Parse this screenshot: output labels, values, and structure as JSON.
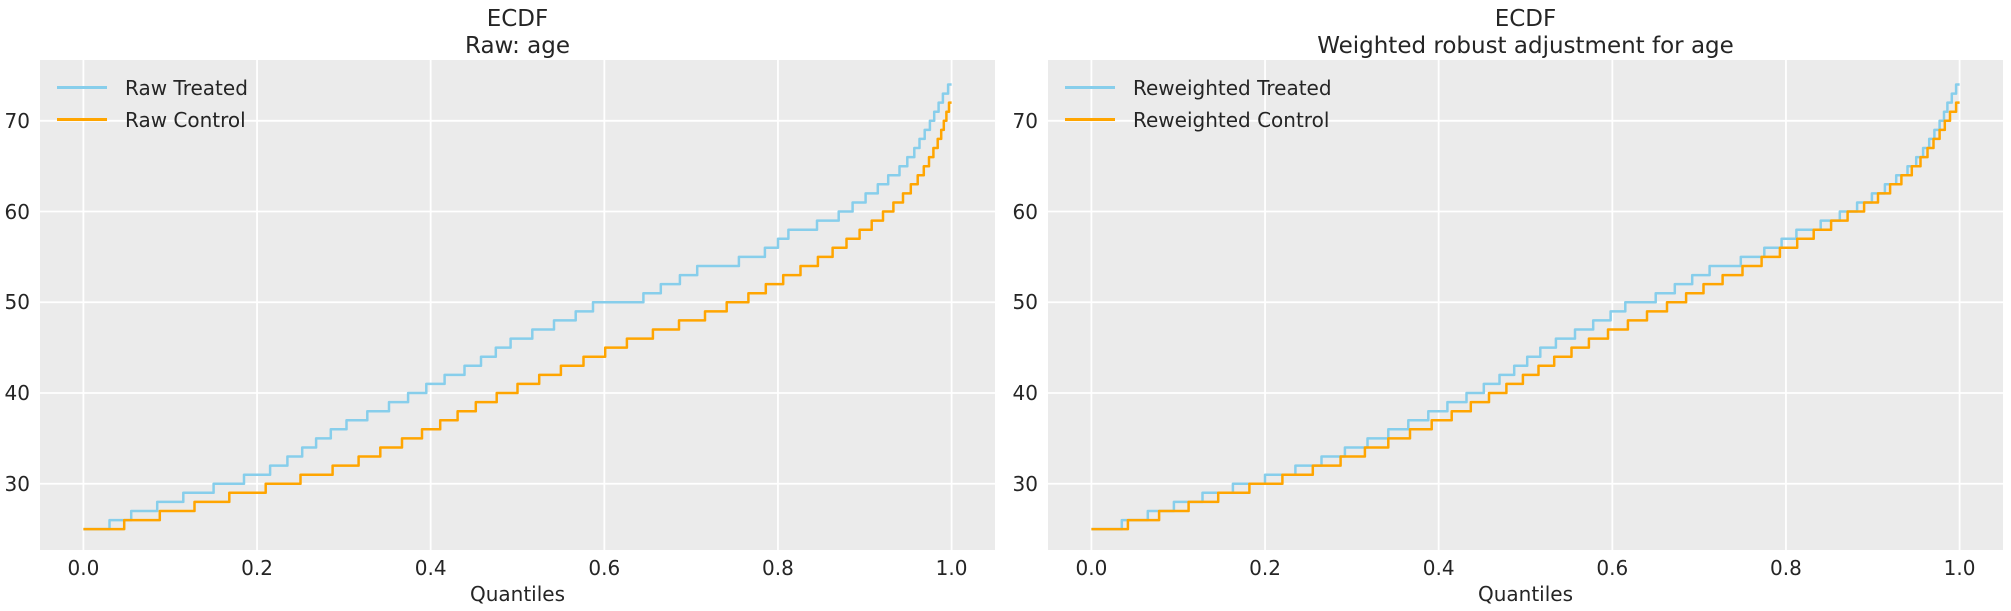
{
  "style": {
    "background": "#ffffff",
    "panel_bg": "#ebebeb",
    "grid_color": "#ffffff",
    "text_color": "#252525",
    "treated_color": "#87ceeb",
    "control_color": "#ffa500"
  },
  "chart_data": [
    {
      "type": "line",
      "step": true,
      "title_lines": [
        "ECDF",
        "Raw: age"
      ],
      "xlabel": "Quantiles",
      "ylabel": "",
      "xlim": [
        -0.05,
        1.05
      ],
      "ylim": [
        22.7,
        76.7
      ],
      "x_tick_values": [
        0.0,
        0.2,
        0.4,
        0.6,
        0.8,
        1.0
      ],
      "x_tick_labels": [
        "0.0",
        "0.2",
        "0.4",
        "0.6",
        "0.8",
        "1.0"
      ],
      "y_tick_values": [
        30,
        40,
        50,
        60,
        70
      ],
      "y_tick_labels": [
        "30",
        "40",
        "50",
        "60",
        "70"
      ],
      "grid": true,
      "legend_position": "upper left",
      "series": [
        {
          "name": "Raw Treated",
          "color_key": "treated_color",
          "points": [
            [
              0,
              25
            ],
            [
              0.03,
              26
            ],
            [
              0.055,
              27
            ],
            [
              0.085,
              28
            ],
            [
              0.115,
              29
            ],
            [
              0.15,
              30
            ],
            [
              0.185,
              31
            ],
            [
              0.215,
              32
            ],
            [
              0.235,
              33
            ],
            [
              0.252,
              34
            ],
            [
              0.268,
              35
            ],
            [
              0.285,
              36
            ],
            [
              0.303,
              37
            ],
            [
              0.327,
              38
            ],
            [
              0.352,
              39
            ],
            [
              0.374,
              40
            ],
            [
              0.395,
              41
            ],
            [
              0.416,
              42
            ],
            [
              0.439,
              43
            ],
            [
              0.458,
              44
            ],
            [
              0.475,
              45
            ],
            [
              0.492,
              46
            ],
            [
              0.517,
              47
            ],
            [
              0.542,
              48
            ],
            [
              0.567,
              49
            ],
            [
              0.587,
              50
            ],
            [
              0.645,
              51
            ],
            [
              0.665,
              52
            ],
            [
              0.687,
              53
            ],
            [
              0.707,
              54
            ],
            [
              0.755,
              55
            ],
            [
              0.785,
              56
            ],
            [
              0.8,
              57
            ],
            [
              0.812,
              58
            ],
            [
              0.845,
              59
            ],
            [
              0.87,
              60
            ],
            [
              0.886,
              61
            ],
            [
              0.901,
              62
            ],
            [
              0.915,
              63
            ],
            [
              0.927,
              64
            ],
            [
              0.94,
              65
            ],
            [
              0.949,
              66
            ],
            [
              0.957,
              67
            ],
            [
              0.963,
              68
            ],
            [
              0.969,
              69
            ],
            [
              0.975,
              70
            ],
            [
              0.98,
              71
            ],
            [
              0.985,
              72
            ],
            [
              0.99,
              73
            ],
            [
              0.996,
              74
            ]
          ]
        },
        {
          "name": "Raw Control",
          "color_key": "control_color",
          "points": [
            [
              0,
              25
            ],
            [
              0.047,
              26
            ],
            [
              0.088,
              27
            ],
            [
              0.128,
              28
            ],
            [
              0.168,
              29
            ],
            [
              0.21,
              30
            ],
            [
              0.25,
              31
            ],
            [
              0.287,
              32
            ],
            [
              0.317,
              33
            ],
            [
              0.342,
              34
            ],
            [
              0.367,
              35
            ],
            [
              0.39,
              36
            ],
            [
              0.411,
              37
            ],
            [
              0.431,
              38
            ],
            [
              0.452,
              39
            ],
            [
              0.476,
              40
            ],
            [
              0.5,
              41
            ],
            [
              0.525,
              42
            ],
            [
              0.55,
              43
            ],
            [
              0.576,
              44
            ],
            [
              0.601,
              45
            ],
            [
              0.626,
              46
            ],
            [
              0.656,
              47
            ],
            [
              0.686,
              48
            ],
            [
              0.716,
              49
            ],
            [
              0.741,
              50
            ],
            [
              0.766,
              51
            ],
            [
              0.786,
              52
            ],
            [
              0.806,
              53
            ],
            [
              0.826,
              54
            ],
            [
              0.846,
              55
            ],
            [
              0.863,
              56
            ],
            [
              0.879,
              57
            ],
            [
              0.894,
              58
            ],
            [
              0.908,
              59
            ],
            [
              0.921,
              60
            ],
            [
              0.933,
              61
            ],
            [
              0.944,
              62
            ],
            [
              0.953,
              63
            ],
            [
              0.961,
              64
            ],
            [
              0.968,
              65
            ],
            [
              0.974,
              66
            ],
            [
              0.979,
              67
            ],
            [
              0.984,
              68
            ],
            [
              0.988,
              69
            ],
            [
              0.991,
              70
            ],
            [
              0.994,
              71
            ],
            [
              0.997,
              72
            ]
          ]
        }
      ]
    },
    {
      "type": "line",
      "step": true,
      "title_lines": [
        "ECDF",
        "Weighted robust adjustment for age"
      ],
      "xlabel": "Quantiles",
      "ylabel": "",
      "xlim": [
        -0.05,
        1.05
      ],
      "ylim": [
        22.7,
        76.7
      ],
      "x_tick_values": [
        0.0,
        0.2,
        0.4,
        0.6,
        0.8,
        1.0
      ],
      "x_tick_labels": [
        "0.0",
        "0.2",
        "0.4",
        "0.6",
        "0.8",
        "1.0"
      ],
      "y_tick_values": [
        30,
        40,
        50,
        60,
        70
      ],
      "y_tick_labels": [
        "30",
        "40",
        "50",
        "60",
        "70"
      ],
      "grid": true,
      "legend_position": "upper left",
      "series": [
        {
          "name": "Reweighted Treated",
          "color_key": "treated_color",
          "points": [
            [
              0,
              25
            ],
            [
              0.035,
              26
            ],
            [
              0.065,
              27
            ],
            [
              0.095,
              28
            ],
            [
              0.128,
              29
            ],
            [
              0.163,
              30
            ],
            [
              0.2,
              31
            ],
            [
              0.235,
              32
            ],
            [
              0.265,
              33
            ],
            [
              0.292,
              34
            ],
            [
              0.318,
              35
            ],
            [
              0.342,
              36
            ],
            [
              0.365,
              37
            ],
            [
              0.388,
              38
            ],
            [
              0.41,
              39
            ],
            [
              0.432,
              40
            ],
            [
              0.452,
              41
            ],
            [
              0.47,
              42
            ],
            [
              0.487,
              43
            ],
            [
              0.502,
              44
            ],
            [
              0.517,
              45
            ],
            [
              0.535,
              46
            ],
            [
              0.557,
              47
            ],
            [
              0.578,
              48
            ],
            [
              0.598,
              49
            ],
            [
              0.615,
              50
            ],
            [
              0.65,
              51
            ],
            [
              0.672,
              52
            ],
            [
              0.692,
              53
            ],
            [
              0.712,
              54
            ],
            [
              0.748,
              55
            ],
            [
              0.775,
              56
            ],
            [
              0.795,
              57
            ],
            [
              0.812,
              58
            ],
            [
              0.84,
              59
            ],
            [
              0.862,
              60
            ],
            [
              0.882,
              61
            ],
            [
              0.899,
              62
            ],
            [
              0.914,
              63
            ],
            [
              0.927,
              64
            ],
            [
              0.94,
              65
            ],
            [
              0.95,
              66
            ],
            [
              0.958,
              67
            ],
            [
              0.965,
              68
            ],
            [
              0.971,
              69
            ],
            [
              0.977,
              70
            ],
            [
              0.982,
              71
            ],
            [
              0.986,
              72
            ],
            [
              0.991,
              73
            ],
            [
              0.996,
              74
            ]
          ]
        },
        {
          "name": "Reweighted Control",
          "color_key": "control_color",
          "points": [
            [
              0,
              25
            ],
            [
              0.042,
              26
            ],
            [
              0.078,
              27
            ],
            [
              0.112,
              28
            ],
            [
              0.146,
              29
            ],
            [
              0.182,
              30
            ],
            [
              0.22,
              31
            ],
            [
              0.255,
              32
            ],
            [
              0.287,
              33
            ],
            [
              0.315,
              34
            ],
            [
              0.342,
              35
            ],
            [
              0.367,
              36
            ],
            [
              0.392,
              37
            ],
            [
              0.415,
              38
            ],
            [
              0.437,
              39
            ],
            [
              0.458,
              40
            ],
            [
              0.478,
              41
            ],
            [
              0.497,
              42
            ],
            [
              0.515,
              43
            ],
            [
              0.533,
              44
            ],
            [
              0.553,
              45
            ],
            [
              0.573,
              46
            ],
            [
              0.595,
              47
            ],
            [
              0.618,
              48
            ],
            [
              0.64,
              49
            ],
            [
              0.663,
              50
            ],
            [
              0.685,
              51
            ],
            [
              0.705,
              52
            ],
            [
              0.727,
              53
            ],
            [
              0.75,
              54
            ],
            [
              0.772,
              55
            ],
            [
              0.793,
              56
            ],
            [
              0.813,
              57
            ],
            [
              0.832,
              58
            ],
            [
              0.852,
              59
            ],
            [
              0.871,
              60
            ],
            [
              0.89,
              61
            ],
            [
              0.906,
              62
            ],
            [
              0.92,
              63
            ],
            [
              0.933,
              64
            ],
            [
              0.945,
              65
            ],
            [
              0.955,
              66
            ],
            [
              0.963,
              67
            ],
            [
              0.97,
              68
            ],
            [
              0.977,
              69
            ],
            [
              0.983,
              70
            ],
            [
              0.989,
              71
            ],
            [
              0.996,
              72
            ]
          ]
        }
      ]
    }
  ]
}
